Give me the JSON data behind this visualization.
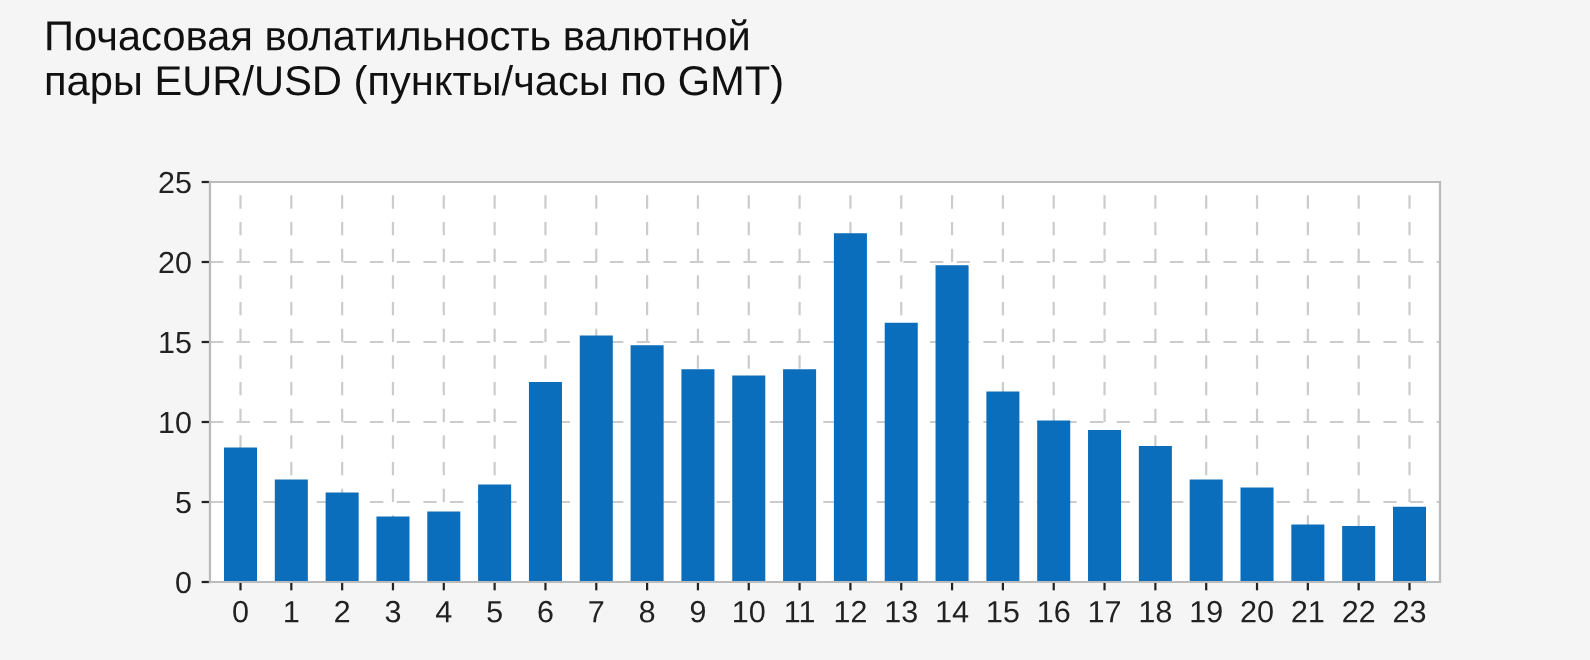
{
  "chart_data": {
    "type": "bar",
    "title": "Почасовая волатильность валютной\nпары EUR/USD (пункты/часы по GMT)",
    "categories": [
      "0",
      "1",
      "2",
      "3",
      "4",
      "5",
      "6",
      "7",
      "8",
      "9",
      "10",
      "11",
      "12",
      "13",
      "14",
      "15",
      "16",
      "17",
      "18",
      "19",
      "20",
      "21",
      "22",
      "23"
    ],
    "values": [
      8.4,
      6.4,
      5.6,
      4.1,
      4.4,
      6.1,
      12.5,
      15.4,
      14.8,
      13.3,
      12.9,
      13.3,
      21.8,
      16.2,
      19.8,
      11.9,
      10.1,
      9.5,
      8.5,
      6.4,
      5.9,
      3.6,
      3.5,
      4.7
    ],
    "color": "#0a6ebd",
    "ylim": [
      0,
      25
    ],
    "yticks": [
      0,
      5,
      10,
      15,
      20,
      25
    ],
    "grid": true
  }
}
